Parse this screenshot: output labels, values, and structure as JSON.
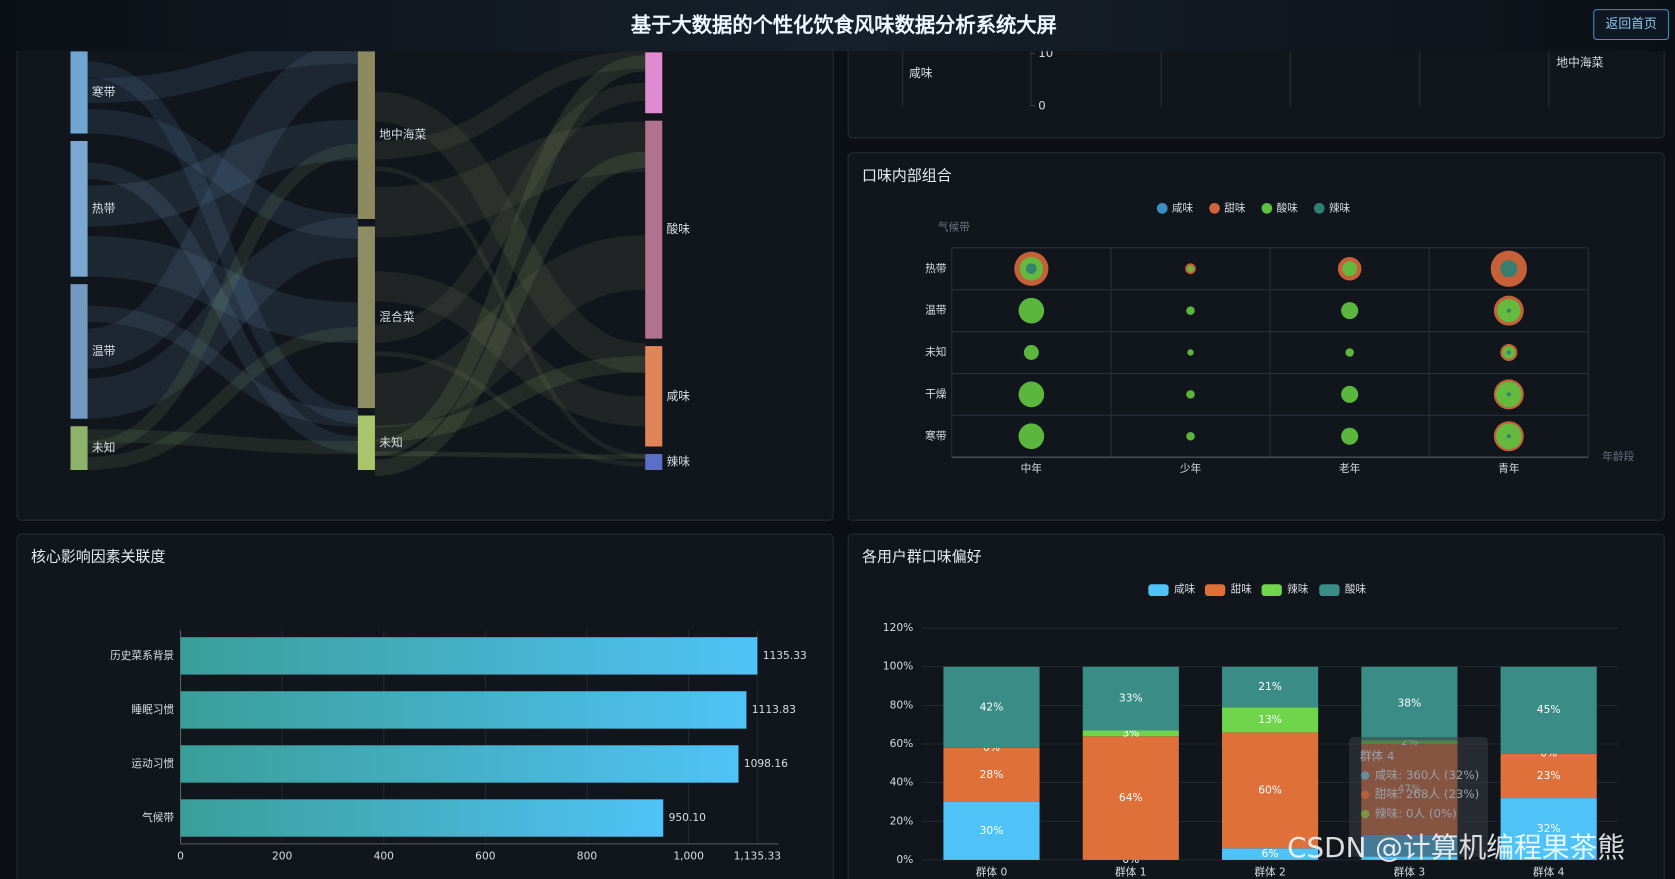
{
  "header": {
    "title": "基于大数据的个性化饮食风味数据分析系统大屏",
    "button": "返回首页"
  },
  "watermark": "CSDN @计算机编程果茶熊",
  "chart_data": [
    {
      "type": "sankey",
      "nodes": [
        {
          "name": "寒带",
          "column": 0,
          "value": 77,
          "color": "#6fa6d2"
        },
        {
          "name": "热带",
          "column": 0,
          "value": 127,
          "color": "#7aa8d0"
        },
        {
          "name": "温带",
          "column": 0,
          "value": 126,
          "color": "#7499bf"
        },
        {
          "name": "未知",
          "column": 0,
          "value": 41,
          "color": "#8cb26c"
        },
        {
          "name": "地中海菜",
          "column": 1,
          "value": 157,
          "color": "#8c8a5e"
        },
        {
          "name": "混合菜",
          "column": 1,
          "value": 170,
          "color": "#8d8c62"
        },
        {
          "name": "未知",
          "column": 1,
          "value": 51,
          "color": "#a9c46c"
        },
        {
          "name": null,
          "column": 2,
          "value": 57,
          "color": "#de8ccf"
        },
        {
          "name": "酸味",
          "column": 2,
          "value": 204,
          "color": "#b0728e"
        },
        {
          "name": "咸味",
          "column": 2,
          "value": 94,
          "color": "#e0855a"
        },
        {
          "name": "辣味",
          "column": 2,
          "value": 15,
          "color": "#5b6fc5"
        }
      ]
    },
    {
      "type": "line",
      "ylim": [
        0,
        10
      ],
      "yticks": [
        0,
        10
      ],
      "annotations": [
        "咸味",
        "地中海菜"
      ]
    },
    {
      "type": "bubble",
      "title": "口味内部组合",
      "x_label": "年龄段",
      "y_label": "气候带",
      "categories": [
        "中年",
        "少年",
        "老年",
        "青年"
      ],
      "y_categories": [
        "热带",
        "温带",
        "未知",
        "干燥",
        "寒带"
      ],
      "series": [
        {
          "name": "咸味",
          "color": "#3a8fc2",
          "values": [
            [
              null,
              null,
              null,
              null
            ],
            [
              null,
              null,
              null,
              null
            ],
            [
              null,
              null,
              null,
              null
            ],
            [
              null,
              null,
              null,
              null
            ],
            [
              null,
              null,
              null,
              null
            ]
          ]
        },
        {
          "name": "甜味",
          "color": "#d0643a",
          "values": [
            [
              16,
              5,
              11,
              17
            ],
            [
              null,
              null,
              null,
              14
            ],
            [
              null,
              null,
              null,
              8
            ],
            [
              null,
              null,
              null,
              14
            ],
            [
              null,
              null,
              null,
              14
            ]
          ]
        },
        {
          "name": "酸味",
          "color": "#5fbf3f",
          "values": [
            [
              11,
              3,
              7,
              null
            ],
            [
              12,
              4,
              8,
              11
            ],
            [
              7,
              3,
              4,
              6
            ],
            [
              12,
              4,
              8,
              12
            ],
            [
              12,
              4,
              8,
              12
            ]
          ]
        },
        {
          "name": "辣味",
          "color": "#2f7f72",
          "values": [
            [
              5,
              null,
              null,
              8
            ],
            [
              null,
              null,
              null,
              2
            ],
            [
              null,
              null,
              null,
              2
            ],
            [
              null,
              null,
              null,
              2
            ],
            [
              null,
              null,
              null,
              2
            ]
          ]
        }
      ]
    },
    {
      "type": "bar",
      "title": "核心影响因素关联度",
      "categories": [
        "历史菜系背景",
        "睡眠习惯",
        "运动习惯",
        "气候带"
      ],
      "values": [
        1135.33,
        1113.83,
        1098.16,
        950.1
      ],
      "value_labels": [
        "1135.33",
        "1113.83",
        "1098.16",
        "950.10"
      ],
      "colors": [
        "#3a9e98",
        "#4fc3f7"
      ],
      "xlim": [
        0,
        1135.33
      ],
      "xticks": [
        0,
        200,
        400,
        600,
        800,
        {
          "value": 1000,
          "label": "1,000"
        },
        {
          "value": 1135.33,
          "label": "1,135.33"
        }
      ]
    },
    {
      "type": "stacked_bar",
      "title": "各用户群口味偏好",
      "categories": [
        "群体 0",
        "群体 1",
        "群体 2",
        "群体 3",
        "群体 4"
      ],
      "series": [
        {
          "name": "咸味",
          "color": "#4fc3f7",
          "values": [
            30,
            0,
            6,
            13,
            32
          ],
          "value_labels": [
            "30%",
            "0%",
            "6%",
            null,
            "32%"
          ]
        },
        {
          "name": "甜味",
          "color": "#e0703a",
          "values": [
            28,
            64,
            60,
            47,
            23
          ],
          "value_labels": [
            "28%",
            "64%",
            "60%",
            "47%",
            "23%"
          ]
        },
        {
          "name": "辣味",
          "color": "#6fd54a",
          "values": [
            0,
            3,
            13,
            2,
            0
          ],
          "value_labels": [
            "0%",
            "3%",
            "13%",
            "2%",
            "0%"
          ]
        },
        {
          "name": "酸味",
          "color": "#3a8c86",
          "values": [
            42,
            33,
            21,
            38,
            45
          ],
          "value_labels": [
            "42%",
            "33%",
            "21%",
            "38%",
            "45%"
          ]
        }
      ],
      "ylim": [
        0,
        120
      ],
      "yticks": [
        {
          "value": 0,
          "label": "0%"
        },
        {
          "value": 20,
          "label": "20%"
        },
        {
          "value": 40,
          "label": "40%"
        },
        {
          "value": 60,
          "label": "60%"
        },
        {
          "value": 80,
          "label": "80%"
        },
        {
          "value": 100,
          "label": "100%"
        },
        {
          "value": 120,
          "label": "120%"
        }
      ],
      "tooltip": {
        "title": "群体 4",
        "lines": [
          "咸味: 360人 (32%)",
          "甜味: 268人 (23%)",
          "辣味: 0人 (0%)"
        ]
      }
    }
  ]
}
